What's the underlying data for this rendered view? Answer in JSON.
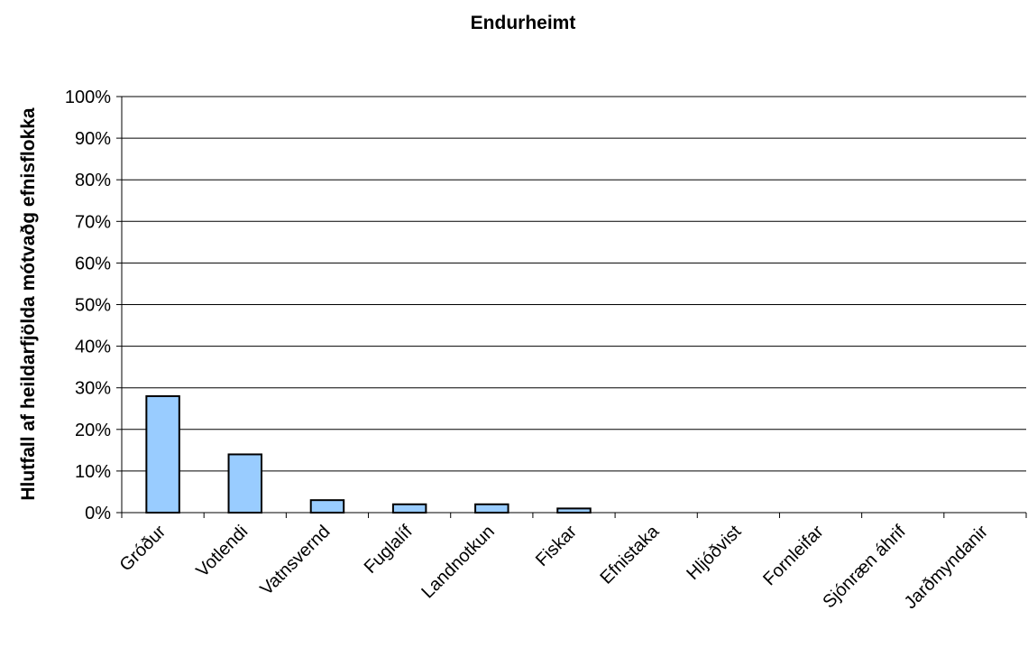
{
  "chart_data": {
    "type": "bar",
    "title": "Endurheimt",
    "xlabel": "",
    "ylabel": "Hlutfall af heildarfjölda mótvaðg efnisflokka",
    "ylim": [
      0,
      1
    ],
    "yticks": [
      "0%",
      "10%",
      "20%",
      "30%",
      "40%",
      "50%",
      "60%",
      "70%",
      "80%",
      "90%",
      "100%"
    ],
    "categories": [
      "Gróður",
      "Votlendi",
      "Vatnsvernd",
      "Fuglalíf",
      "Landnotkun",
      "Fiskar",
      "Efnistaka",
      "Hljóðvist",
      "Fornleifar",
      "Sjónræn áhrif",
      "Jarðmyndanir"
    ],
    "values": [
      0.28,
      0.14,
      0.03,
      0.02,
      0.02,
      0.01,
      0,
      0,
      0,
      0,
      0
    ],
    "grid": true,
    "legend": "none",
    "bar_color": "#99ccff"
  }
}
